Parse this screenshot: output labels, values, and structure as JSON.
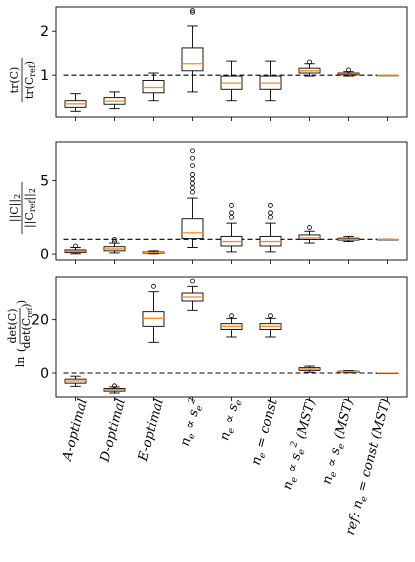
{
  "chart_data": {
    "type": "box",
    "categories": [
      "A-optimal",
      "D-optimal",
      "E-optimal",
      "n_e ∝ s_e²",
      "n_e ∝ s_e",
      "n_e = const",
      "n_e ∝ s_e² (MST)",
      "n_e ∝ s_e (MST)",
      "ref: n_e = const (MST)"
    ],
    "panels": [
      {
        "ylabel": "tr(C) / tr(C_ref)",
        "yticks": [
          1,
          2
        ],
        "ylim": [
          0.05,
          2.55
        ],
        "reference_line": 1.0,
        "boxes": [
          {
            "whislo": 0.18,
            "q1": 0.27,
            "med": 0.35,
            "q3": 0.42,
            "whishi": 0.58,
            "fliers": []
          },
          {
            "whislo": 0.24,
            "q1": 0.34,
            "med": 0.41,
            "q3": 0.49,
            "whishi": 0.62,
            "fliers": []
          },
          {
            "whislo": 0.42,
            "q1": 0.6,
            "med": 0.72,
            "q3": 0.88,
            "whishi": 1.05,
            "fliers": []
          },
          {
            "whislo": 0.62,
            "q1": 1.1,
            "med": 1.26,
            "q3": 1.62,
            "whishi": 2.12,
            "fliers": [
              2.43,
              2.47
            ]
          },
          {
            "whislo": 0.42,
            "q1": 0.68,
            "med": 0.82,
            "q3": 0.98,
            "whishi": 1.32,
            "fliers": []
          },
          {
            "whislo": 0.42,
            "q1": 0.68,
            "med": 0.82,
            "q3": 0.98,
            "whishi": 1.32,
            "fliers": []
          },
          {
            "whislo": 0.98,
            "q1": 1.05,
            "med": 1.1,
            "q3": 1.16,
            "whishi": 1.26,
            "fliers": [
              1.3
            ]
          },
          {
            "whislo": 0.98,
            "q1": 1.01,
            "med": 1.03,
            "q3": 1.05,
            "whishi": 1.08,
            "fliers": [
              1.12
            ]
          },
          {
            "whislo": 1.0,
            "q1": 1.0,
            "med": 1.0,
            "q3": 1.0,
            "whishi": 1.0,
            "fliers": []
          }
        ]
      },
      {
        "ylabel": "||C||₂ / ||C_ref||₂",
        "yticks": [
          0,
          5
        ],
        "ylim": [
          -0.4,
          7.6
        ],
        "reference_line": 1.0,
        "boxes": [
          {
            "whislo": 0.02,
            "q1": 0.1,
            "med": 0.18,
            "q3": 0.28,
            "whishi": 0.45,
            "fliers": [
              0.55
            ]
          },
          {
            "whislo": 0.08,
            "q1": 0.22,
            "med": 0.35,
            "q3": 0.5,
            "whishi": 0.75,
            "fliers": [
              0.85,
              1.0
            ]
          },
          {
            "whislo": 0.02,
            "q1": 0.06,
            "med": 0.1,
            "q3": 0.14,
            "whishi": 0.22,
            "fliers": []
          },
          {
            "whislo": 0.45,
            "q1": 1.05,
            "med": 1.45,
            "q3": 2.4,
            "whishi": 3.8,
            "fliers": [
              4.2,
              4.5,
              4.8,
              5.1,
              5.4,
              6.0,
              6.5,
              7.0
            ]
          },
          {
            "whislo": 0.15,
            "q1": 0.55,
            "med": 0.85,
            "q3": 1.2,
            "whishi": 2.1,
            "fliers": [
              2.5,
              2.8,
              3.3
            ]
          },
          {
            "whislo": 0.15,
            "q1": 0.55,
            "med": 0.85,
            "q3": 1.2,
            "whishi": 2.1,
            "fliers": [
              2.5,
              2.8,
              3.3
            ]
          },
          {
            "whislo": 0.75,
            "q1": 1.0,
            "med": 1.1,
            "q3": 1.3,
            "whishi": 1.55,
            "fliers": [
              1.8
            ]
          },
          {
            "whislo": 0.85,
            "q1": 0.95,
            "med": 1.0,
            "q3": 1.08,
            "whishi": 1.2,
            "fliers": []
          },
          {
            "whislo": 1.0,
            "q1": 1.0,
            "med": 1.0,
            "q3": 1.0,
            "whishi": 1.0,
            "fliers": []
          }
        ]
      },
      {
        "ylabel": "ln( det(C) / det(C_ref) )",
        "yticks": [
          0,
          20
        ],
        "ylim": [
          -9,
          36
        ],
        "reference_line": 0.0,
        "boxes": [
          {
            "whislo": -5.0,
            "q1": -3.8,
            "med": -3.0,
            "q3": -2.3,
            "whishi": -1.2,
            "fliers": []
          },
          {
            "whislo": -7.5,
            "q1": -6.8,
            "med": -6.2,
            "q3": -5.8,
            "whishi": -5.2,
            "fliers": [
              -4.8
            ]
          },
          {
            "whislo": 11.5,
            "q1": 17.5,
            "med": 20.5,
            "q3": 23.0,
            "whishi": 30.5,
            "fliers": [
              32.5
            ]
          },
          {
            "whislo": 23.5,
            "q1": 27.0,
            "med": 28.5,
            "q3": 30.0,
            "whishi": 32.5,
            "fliers": [
              34.5
            ]
          },
          {
            "whislo": 13.5,
            "q1": 16.3,
            "med": 17.5,
            "q3": 18.5,
            "whishi": 20.5,
            "fliers": [
              21.5
            ]
          },
          {
            "whislo": 13.5,
            "q1": 16.3,
            "med": 17.5,
            "q3": 18.5,
            "whishi": 20.5,
            "fliers": [
              21.5
            ]
          },
          {
            "whislo": 0.3,
            "q1": 1.0,
            "med": 1.5,
            "q3": 2.0,
            "whishi": 2.6,
            "fliers": []
          },
          {
            "whislo": 0.1,
            "q1": 0.3,
            "med": 0.5,
            "q3": 0.7,
            "whishi": 0.9,
            "fliers": []
          },
          {
            "whislo": 0.0,
            "q1": 0.0,
            "med": 0.0,
            "q3": 0.0,
            "whishi": 0.0,
            "fliers": []
          }
        ]
      }
    ]
  },
  "colors": {
    "median": "#ff8c1a",
    "box_edge": "#000000",
    "reference_line": "#000000"
  }
}
